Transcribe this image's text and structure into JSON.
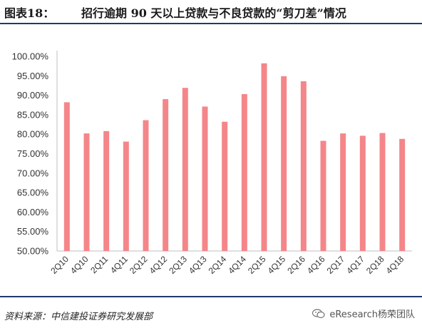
{
  "header": {
    "figure_number": "图表18：",
    "title": "招行逾期 90 天以上贷款与不良贷款的“剪刀差”情况"
  },
  "footer": {
    "source": "资料来源：中信建投证券研究发展部",
    "watermark": "eResearch杨荣团队"
  },
  "colors": {
    "bar": "#f4868a",
    "rule": "#1f3a6b",
    "axis": "#bfbfbf"
  },
  "chart_data": {
    "type": "bar",
    "categories": [
      "2Q10",
      "4Q10",
      "2Q11",
      "4Q11",
      "2Q12",
      "4Q12",
      "2Q13",
      "4Q13",
      "2Q14",
      "4Q14",
      "2Q15",
      "4Q15",
      "2Q16",
      "4Q16",
      "2Q17",
      "4Q17",
      "2Q18",
      "4Q18"
    ],
    "values": [
      88.2,
      80.2,
      80.8,
      78.1,
      83.6,
      89.0,
      91.9,
      87.1,
      83.2,
      90.3,
      98.2,
      94.9,
      93.6,
      78.3,
      80.2,
      79.6,
      80.3,
      78.8
    ],
    "y_ticks": [
      "50.00%",
      "55.00%",
      "60.00%",
      "65.00%",
      "70.00%",
      "75.00%",
      "80.00%",
      "85.00%",
      "90.00%",
      "95.00%",
      "100.00%"
    ],
    "ylim": [
      50,
      100
    ],
    "grid": false,
    "title": "",
    "xlabel": "",
    "ylabel": ""
  }
}
